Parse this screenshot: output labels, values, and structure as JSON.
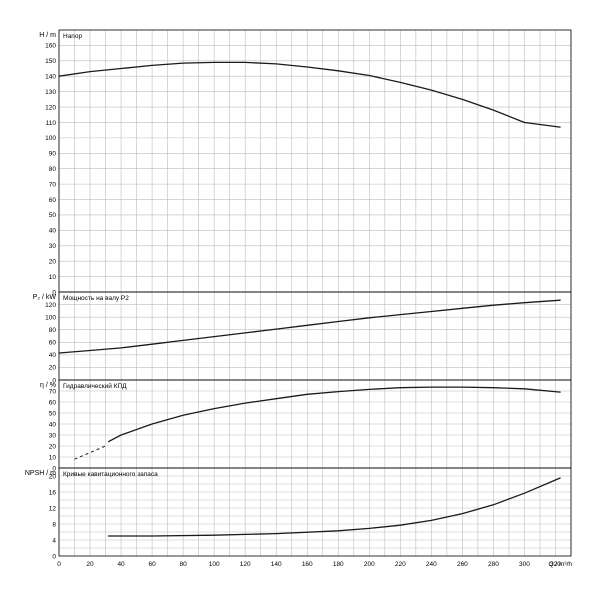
{
  "chart_data": [
    {
      "type": "line",
      "title": "Напор",
      "ylabel": "H / m",
      "ylim": [
        0,
        170
      ],
      "ystep": 10,
      "xlim": [
        0,
        330
      ],
      "series": [
        {
          "style": "solid",
          "x": [
            0,
            20,
            40,
            60,
            80,
            100,
            120,
            140,
            160,
            180,
            200,
            220,
            240,
            260,
            280,
            300,
            323
          ],
          "y": [
            140,
            143,
            145,
            147,
            148.5,
            149,
            149,
            148,
            146,
            143.5,
            140.5,
            136,
            131,
            125,
            118,
            110,
            107
          ]
        }
      ]
    },
    {
      "type": "line",
      "title": "Мощность на валу P2",
      "ylabel": "P₂ / kW",
      "ylim": [
        0,
        140
      ],
      "ystep": 20,
      "xlim": [
        0,
        330
      ],
      "series": [
        {
          "style": "solid",
          "x": [
            0,
            20,
            40,
            60,
            80,
            100,
            120,
            140,
            160,
            180,
            200,
            220,
            240,
            260,
            280,
            300,
            323
          ],
          "y": [
            43,
            47,
            51,
            57,
            63,
            69,
            75,
            81,
            87,
            93,
            99,
            104,
            109,
            114,
            119,
            123,
            127
          ]
        }
      ]
    },
    {
      "type": "line",
      "title": "Гидравлический КПД",
      "ylabel": "η / %",
      "ylim": [
        0,
        80
      ],
      "ystep": 10,
      "xlim": [
        0,
        330
      ],
      "series": [
        {
          "style": "dashed",
          "x": [
            10,
            20,
            30
          ],
          "y": [
            8,
            14,
            20
          ]
        },
        {
          "style": "solid",
          "x": [
            32,
            40,
            60,
            80,
            100,
            120,
            140,
            160,
            180,
            200,
            220,
            240,
            260,
            280,
            300,
            323
          ],
          "y": [
            24,
            30,
            40,
            48,
            54,
            59,
            63,
            67,
            69.5,
            71.5,
            73,
            73.5,
            73.5,
            73,
            72,
            69
          ]
        }
      ]
    },
    {
      "type": "line",
      "title": "Кривые кавитационного запаса",
      "ylabel": "NPSH / m",
      "ylim": [
        0,
        22
      ],
      "ystep": 2,
      "ytick_labels_every": 4,
      "xlim": [
        0,
        330
      ],
      "xlabel": "Q / m³/h",
      "xticks": [
        0,
        20,
        40,
        60,
        80,
        100,
        120,
        140,
        160,
        180,
        200,
        220,
        240,
        260,
        280,
        300,
        320
      ],
      "series": [
        {
          "style": "solid",
          "x": [
            32,
            60,
            100,
            140,
            180,
            200,
            220,
            240,
            260,
            280,
            300,
            323
          ],
          "y": [
            5,
            5,
            5.2,
            5.6,
            6.3,
            6.9,
            7.7,
            8.9,
            10.6,
            12.8,
            15.7,
            19.5
          ]
        }
      ]
    }
  ]
}
